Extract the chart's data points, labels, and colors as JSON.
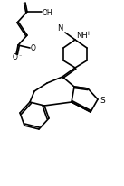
{
  "bg_color": "#ffffff",
  "line_color": "#000000",
  "bond_lw": 1.2,
  "text_color": "#000000",
  "figsize": [
    1.37,
    2.07
  ],
  "dpi": 100,
  "label_NH": "NH",
  "label_plus": "+",
  "label_N": "N",
  "label_S": "S",
  "label_O": "O",
  "label_OH": "OH",
  "label_Ominus": "O",
  "minus_sign": "⁻"
}
